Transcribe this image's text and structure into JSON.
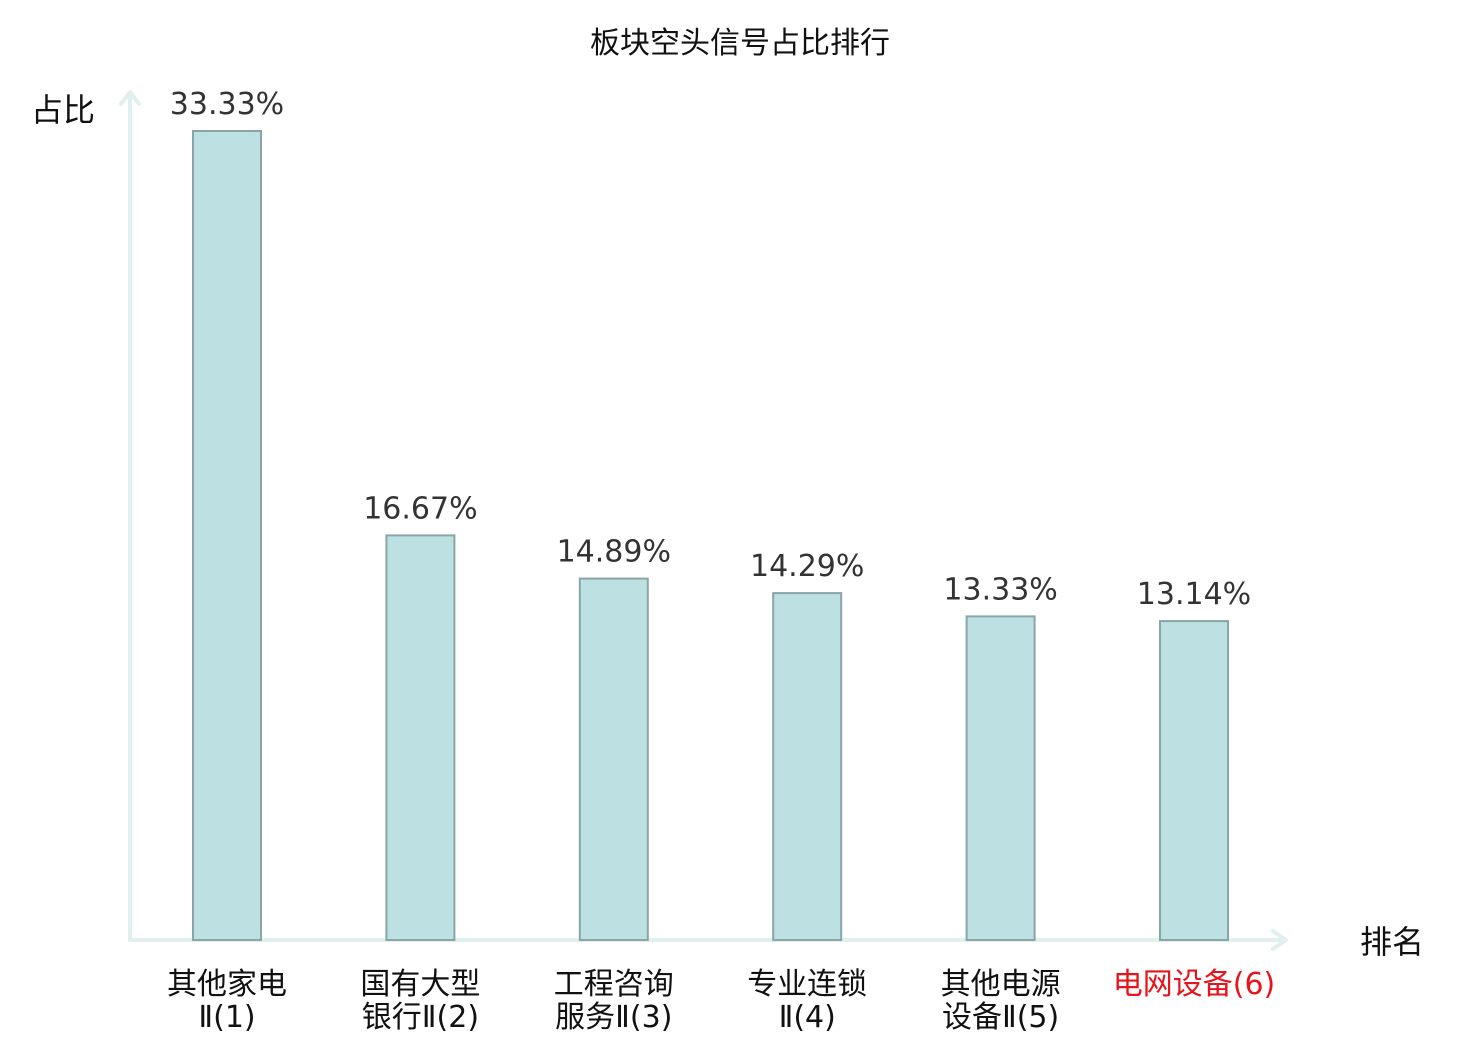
{
  "chart_data": {
    "type": "bar",
    "title": "板块空头信号占比排行",
    "xlabel": "排名",
    "ylabel": "占比",
    "categories": [
      [
        "其他家电",
        "Ⅱ(1)"
      ],
      [
        "国有大型",
        "银行Ⅱ(2)"
      ],
      [
        "工程咨询",
        "服务Ⅱ(3)"
      ],
      [
        "专业连锁",
        "Ⅱ(4)"
      ],
      [
        "其他电源",
        "设备Ⅱ(5)"
      ],
      [
        "电网设备(6)"
      ]
    ],
    "values": [
      33.33,
      16.67,
      14.89,
      14.29,
      13.33,
      13.14
    ],
    "value_labels": [
      "33.33%",
      "16.67%",
      "14.89%",
      "14.29%",
      "13.33%",
      "13.14%"
    ],
    "highlight_index": 5,
    "ylim": [
      0,
      33.33
    ],
    "grid": false,
    "colors": {
      "bar_fill": "#bde0e2",
      "bar_stroke": "#89a5a7",
      "axis": "#dff0ee",
      "highlight_label": "#e8141b",
      "text": "#111111"
    }
  }
}
